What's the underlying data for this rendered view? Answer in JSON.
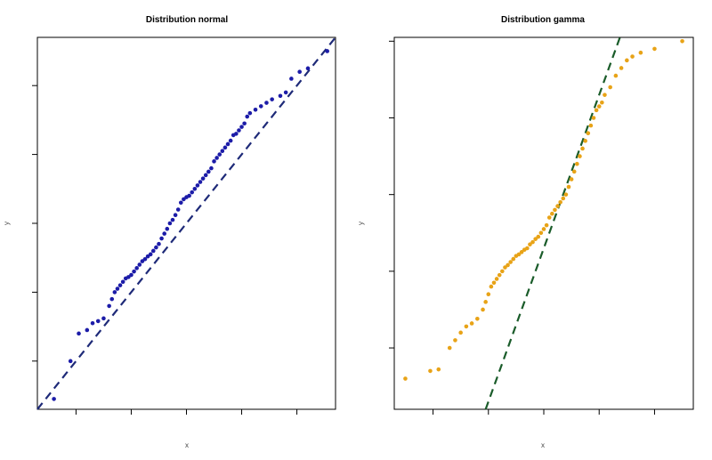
{
  "chart_data": [
    {
      "type": "scatter",
      "title": "Distribution normal",
      "xlabel": "x",
      "ylabel": "y",
      "tick_labels_visible": false,
      "grid": false,
      "xlim": [
        -2.7,
        2.7
      ],
      "ylim": [
        -2.7,
        2.7
      ],
      "point_color": "#1c1ca8",
      "line": {
        "type": "reference",
        "style": "dashed",
        "color": "#1e2a78",
        "slope": 1,
        "intercept": 0
      },
      "series": [
        {
          "x": [
            -2.4,
            -2.1,
            -1.95,
            -1.8,
            -1.7,
            -1.6,
            -1.5,
            -1.4,
            -1.35,
            -1.3,
            -1.25,
            -1.2,
            -1.15,
            -1.1,
            -1.05,
            -1.0,
            -0.95,
            -0.9,
            -0.85,
            -0.8,
            -0.75,
            -0.7,
            -0.65,
            -0.6,
            -0.55,
            -0.5,
            -0.45,
            -0.4,
            -0.35,
            -0.3,
            -0.25,
            -0.2,
            -0.15,
            -0.1,
            -0.05,
            0.0,
            0.05,
            0.1,
            0.15,
            0.2,
            0.25,
            0.3,
            0.35,
            0.4,
            0.45,
            0.5,
            0.55,
            0.6,
            0.65,
            0.7,
            0.75,
            0.8,
            0.85,
            0.9,
            0.95,
            1.0,
            1.05,
            1.1,
            1.15,
            1.25,
            1.35,
            1.45,
            1.55,
            1.7,
            1.8,
            1.9,
            2.05,
            2.2,
            2.55
          ],
          "y": [
            -2.55,
            -2.0,
            -1.6,
            -1.55,
            -1.45,
            -1.42,
            -1.38,
            -1.2,
            -1.1,
            -1.0,
            -0.95,
            -0.9,
            -0.85,
            -0.8,
            -0.78,
            -0.75,
            -0.7,
            -0.65,
            -0.6,
            -0.55,
            -0.52,
            -0.48,
            -0.45,
            -0.4,
            -0.35,
            -0.3,
            -0.22,
            -0.15,
            -0.08,
            0.0,
            0.05,
            0.12,
            0.2,
            0.3,
            0.35,
            0.38,
            0.4,
            0.45,
            0.5,
            0.55,
            0.6,
            0.65,
            0.7,
            0.75,
            0.8,
            0.9,
            0.95,
            1.0,
            1.05,
            1.1,
            1.15,
            1.2,
            1.28,
            1.3,
            1.35,
            1.4,
            1.45,
            1.55,
            1.6,
            1.65,
            1.7,
            1.75,
            1.8,
            1.85,
            1.9,
            2.1,
            2.2,
            2.25,
            2.5
          ]
        }
      ]
    },
    {
      "type": "scatter",
      "title": "Distribution gamma",
      "xlabel": "x",
      "ylabel": "y",
      "tick_labels_visible": false,
      "grid": false,
      "xlim": [
        -2.7,
        2.7
      ],
      "ylim": [
        -1.8,
        3.05
      ],
      "point_color": "#e8a317",
      "line": {
        "type": "reference",
        "style": "dashed",
        "color": "#1a5c2a",
        "slope": 2.0,
        "intercept": 0.3
      },
      "series": [
        {
          "x": [
            -2.5,
            -2.05,
            -1.9,
            -1.7,
            -1.6,
            -1.5,
            -1.4,
            -1.3,
            -1.2,
            -1.1,
            -1.05,
            -1.0,
            -0.95,
            -0.9,
            -0.85,
            -0.8,
            -0.75,
            -0.7,
            -0.65,
            -0.6,
            -0.55,
            -0.5,
            -0.45,
            -0.4,
            -0.35,
            -0.3,
            -0.25,
            -0.2,
            -0.15,
            -0.1,
            -0.05,
            0.0,
            0.05,
            0.1,
            0.15,
            0.2,
            0.25,
            0.3,
            0.35,
            0.4,
            0.45,
            0.5,
            0.55,
            0.6,
            0.65,
            0.7,
            0.75,
            0.8,
            0.85,
            0.9,
            0.95,
            1.0,
            1.05,
            1.1,
            1.2,
            1.3,
            1.4,
            1.5,
            1.6,
            1.75,
            2.0,
            2.5
          ],
          "y": [
            -1.4,
            -1.3,
            -1.28,
            -1.0,
            -0.9,
            -0.8,
            -0.72,
            -0.68,
            -0.62,
            -0.5,
            -0.4,
            -0.3,
            -0.2,
            -0.15,
            -0.1,
            -0.05,
            0.0,
            0.05,
            0.08,
            0.12,
            0.16,
            0.2,
            0.22,
            0.25,
            0.28,
            0.3,
            0.35,
            0.38,
            0.42,
            0.45,
            0.5,
            0.55,
            0.6,
            0.7,
            0.75,
            0.8,
            0.85,
            0.9,
            0.95,
            1.0,
            1.1,
            1.2,
            1.3,
            1.4,
            1.5,
            1.6,
            1.7,
            1.8,
            1.9,
            2.0,
            2.1,
            2.15,
            2.2,
            2.3,
            2.4,
            2.55,
            2.65,
            2.75,
            2.8,
            2.85,
            2.9,
            3.0
          ]
        }
      ]
    }
  ]
}
